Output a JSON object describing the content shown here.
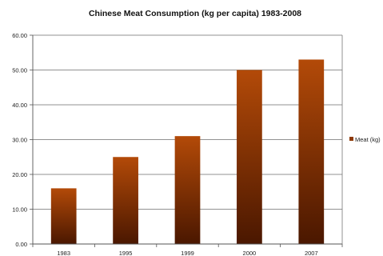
{
  "chart_data": {
    "type": "bar",
    "title": "Chinese Meat Consumption (kg per capita) 1983-2008",
    "categories": [
      "1983",
      "1995",
      "1999",
      "2000",
      "2007"
    ],
    "series": [
      {
        "name": "Meat (kg)",
        "values": [
          16,
          25,
          31,
          50,
          53
        ]
      }
    ],
    "ylim": [
      0,
      60
    ],
    "yticks": [
      0,
      10,
      20,
      30,
      40,
      50,
      60
    ],
    "ytick_labels": [
      "0.00",
      "10.00",
      "20.00",
      "30.00",
      "40.00",
      "50.00",
      "60.00"
    ],
    "xlabel": "",
    "ylabel": "",
    "grid": true,
    "legend_position": "right",
    "colors": {
      "bar_top": "#b34a08",
      "bar_bottom": "#4a1700",
      "legend_swatch": "#8e3a07"
    }
  }
}
